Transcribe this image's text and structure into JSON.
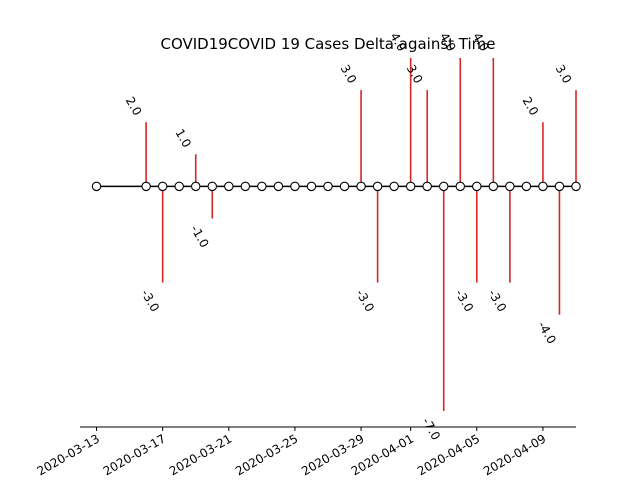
{
  "chart_data": {
    "type": "stem",
    "title": "COVID19COVID 19 Cases Delta against Time",
    "xlabel": "",
    "ylabel": "",
    "xlim": [
      "2020-03-12",
      "2020-04-11"
    ],
    "ylim": [
      -7.5,
      4.0
    ],
    "y_axis_visible": false,
    "grid": false,
    "x_ticks": [
      "2020-03-13",
      "2020-03-17",
      "2020-03-21",
      "2020-03-25",
      "2020-03-29",
      "2020-04-01",
      "2020-04-05",
      "2020-04-09"
    ],
    "colors": {
      "stem": "#d62728",
      "baseline": "#000000",
      "marker_face": "#ffffff",
      "marker_edge": "#000000"
    },
    "points": [
      {
        "x": "2020-03-13",
        "y": 0
      },
      {
        "x": "2020-03-16",
        "y": 2.0
      },
      {
        "x": "2020-03-17",
        "y": -3.0
      },
      {
        "x": "2020-03-18",
        "y": 0
      },
      {
        "x": "2020-03-19",
        "y": 1.0
      },
      {
        "x": "2020-03-20",
        "y": -1.0
      },
      {
        "x": "2020-03-21",
        "y": 0
      },
      {
        "x": "2020-03-22",
        "y": 0
      },
      {
        "x": "2020-03-23",
        "y": 0
      },
      {
        "x": "2020-03-24",
        "y": 0
      },
      {
        "x": "2020-03-25",
        "y": 0
      },
      {
        "x": "2020-03-26",
        "y": 0
      },
      {
        "x": "2020-03-27",
        "y": 0
      },
      {
        "x": "2020-03-28",
        "y": 0
      },
      {
        "x": "2020-03-29",
        "y": 3.0
      },
      {
        "x": "2020-03-30",
        "y": -3.0
      },
      {
        "x": "2020-03-31",
        "y": 0
      },
      {
        "x": "2020-04-01",
        "y": 4.0
      },
      {
        "x": "2020-04-02",
        "y": 3.0
      },
      {
        "x": "2020-04-03",
        "y": -7.0
      },
      {
        "x": "2020-04-04",
        "y": 4.0
      },
      {
        "x": "2020-04-05",
        "y": -3.0
      },
      {
        "x": "2020-04-06",
        "y": 4.0
      },
      {
        "x": "2020-04-07",
        "y": -3.0
      },
      {
        "x": "2020-04-08",
        "y": 0
      },
      {
        "x": "2020-04-09",
        "y": 2.0
      },
      {
        "x": "2020-04-10",
        "y": -4.0
      },
      {
        "x": "2020-04-11",
        "y": 3.0
      }
    ]
  }
}
